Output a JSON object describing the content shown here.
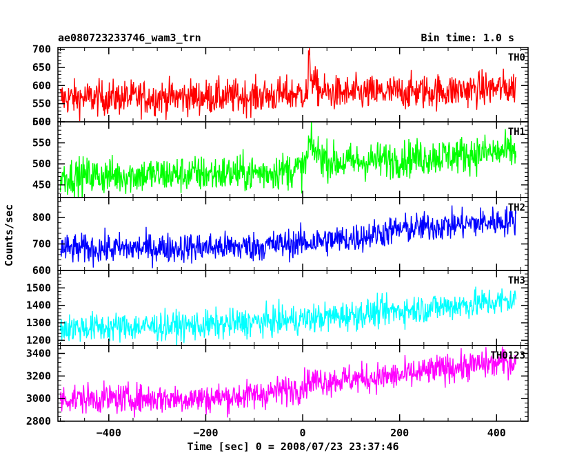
{
  "header": {
    "left_title": "ae080723233746_wam3_trn",
    "right_title": "Bin time: 1.0 s"
  },
  "chart_data": {
    "type": "line",
    "xlabel": "Time [sec] 0 = 2008/07/23 23:37:46",
    "ylabel": "Counts/sec",
    "xlim": [
      -505,
      465
    ],
    "x_ticks": [
      -400,
      -200,
      0,
      200,
      400
    ],
    "x_tick_labels": [
      "−400",
      "−200",
      "0",
      "200",
      "400"
    ],
    "x_data_range": [
      -500,
      440
    ],
    "bin_time_sec": 1.0,
    "grid": false,
    "panels": [
      {
        "name": "TH0",
        "color": "#ff0000",
        "ylim": [
          500,
          705
        ],
        "y_ticks": [
          500,
          550,
          600,
          650,
          700
        ],
        "y_tick_labels": [
          "500",
          "550",
          "600",
          "650",
          "700"
        ],
        "baseline": [
          [
            -500,
            565
          ],
          [
            -100,
            570
          ],
          [
            0,
            578
          ],
          [
            100,
            578
          ],
          [
            300,
            585
          ],
          [
            440,
            595
          ]
        ],
        "noise": 24,
        "event": {
          "t": 12,
          "peak": 95,
          "decay": 10
        }
      },
      {
        "name": "TH1",
        "color": "#00ff00",
        "ylim": [
          420,
          600
        ],
        "y_ticks": [
          450,
          500,
          550,
          600
        ],
        "y_tick_labels": [
          "450",
          "500",
          "550",
          "600"
        ],
        "baseline": [
          [
            -500,
            470
          ],
          [
            -100,
            478
          ],
          [
            0,
            488
          ],
          [
            10,
            515
          ],
          [
            60,
            500
          ],
          [
            200,
            512
          ],
          [
            440,
            530
          ]
        ],
        "noise": 22,
        "event": {
          "t": 12,
          "peak": 35,
          "decay": 25
        }
      },
      {
        "name": "TH2",
        "color": "#0000ff",
        "ylim": [
          600,
          875
        ],
        "y_ticks": [
          600,
          700,
          800
        ],
        "y_tick_labels": [
          "600",
          "700",
          "800"
        ],
        "baseline": [
          [
            -500,
            680
          ],
          [
            -100,
            690
          ],
          [
            0,
            705
          ],
          [
            100,
            720
          ],
          [
            200,
            755
          ],
          [
            300,
            770
          ],
          [
            440,
            790
          ]
        ],
        "noise": 28
      },
      {
        "name": "TH3",
        "color": "#00ffff",
        "ylim": [
          1170,
          1600
        ],
        "y_ticks": [
          1200,
          1300,
          1400,
          1500
        ],
        "y_tick_labels": [
          "1200",
          "1300",
          "1400",
          "1500"
        ],
        "baseline": [
          [
            -500,
            1270
          ],
          [
            -200,
            1285
          ],
          [
            0,
            1320
          ],
          [
            200,
            1370
          ],
          [
            440,
            1430
          ]
        ],
        "noise": 42
      },
      {
        "name": "TH0123",
        "color": "#ff00ff",
        "ylim": [
          2800,
          3470
        ],
        "y_ticks": [
          2800,
          3000,
          3200,
          3400
        ],
        "y_tick_labels": [
          "2800",
          "3000",
          "3200",
          "3400"
        ],
        "baseline": [
          [
            -500,
            3000
          ],
          [
            -200,
            3000
          ],
          [
            -100,
            3030
          ],
          [
            0,
            3100
          ],
          [
            10,
            3150
          ],
          [
            200,
            3200
          ],
          [
            300,
            3270
          ],
          [
            440,
            3330
          ]
        ],
        "noise": 65
      }
    ]
  }
}
